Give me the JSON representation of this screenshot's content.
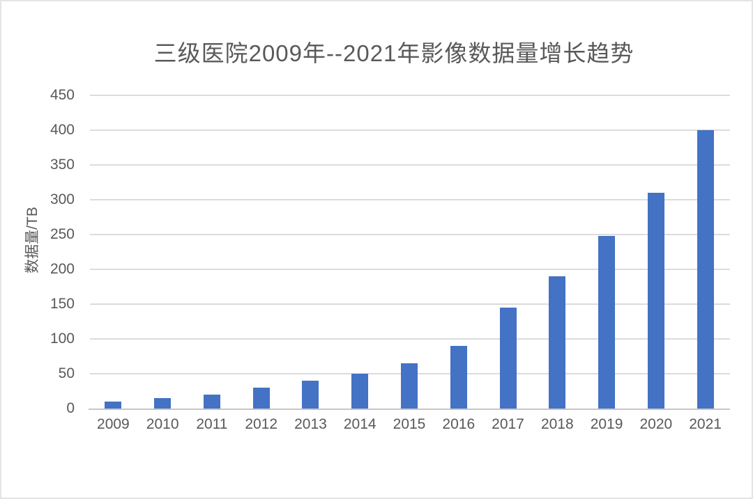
{
  "page": {
    "background_color": "#ffffff",
    "border_color": "#e4e4e4"
  },
  "chart_data": {
    "type": "bar",
    "title": "三级医院2009年--2021年影像数据量增长趋势",
    "categories": [
      "2009",
      "2010",
      "2011",
      "2012",
      "2013",
      "2014",
      "2015",
      "2016",
      "2017",
      "2018",
      "2019",
      "2020",
      "2021"
    ],
    "values": [
      10,
      15,
      20,
      30,
      40,
      50,
      65,
      90,
      145,
      190,
      248,
      310,
      400
    ],
    "xlabel": "",
    "ylabel": "数据量/TB",
    "ylim": [
      0,
      450
    ],
    "yticks": [
      0,
      50,
      100,
      150,
      200,
      250,
      300,
      350,
      400,
      450
    ],
    "grid": "horizontal-only",
    "legend": "none",
    "bar_color": "#4472C4",
    "gridline_color": "#dcdcdc",
    "axis_line_color": "#c6c6c6",
    "text_color": "#595959"
  }
}
